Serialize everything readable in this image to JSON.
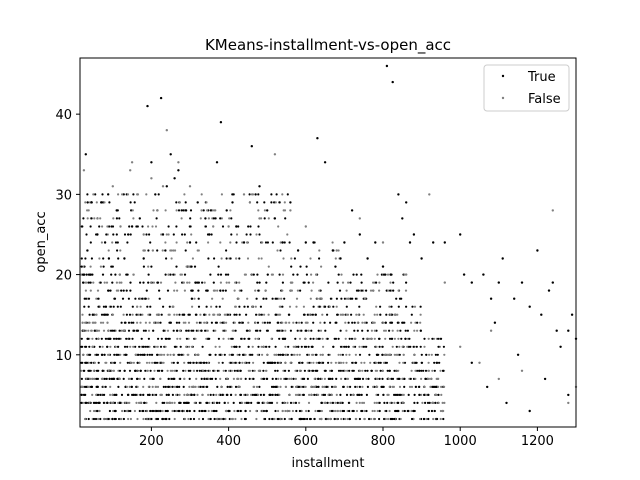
{
  "chart_data": {
    "type": "scatter",
    "title": "KMeans-installment-vs-open_acc",
    "xlabel": "installment",
    "ylabel": "open_acc",
    "xlim": [
      15,
      1300
    ],
    "ylim": [
      1,
      47
    ],
    "xticks": [
      200,
      400,
      600,
      800,
      1000,
      1200
    ],
    "yticks": [
      10,
      20,
      30,
      40
    ],
    "grid": false,
    "legend_position": "top-right",
    "series": [
      {
        "name": "True",
        "color": "#000000",
        "points": [
          [
            30,
            35
          ],
          [
            35,
            29
          ],
          [
            45,
            29
          ],
          [
            60,
            25
          ],
          [
            70,
            29
          ],
          [
            80,
            24
          ],
          [
            90,
            22
          ],
          [
            110,
            28
          ],
          [
            130,
            22
          ],
          [
            150,
            26
          ],
          [
            170,
            27
          ],
          [
            180,
            22
          ],
          [
            190,
            41
          ],
          [
            200,
            34
          ],
          [
            210,
            30
          ],
          [
            225,
            42
          ],
          [
            230,
            25
          ],
          [
            240,
            31
          ],
          [
            250,
            35
          ],
          [
            260,
            32
          ],
          [
            270,
            33
          ],
          [
            290,
            28
          ],
          [
            300,
            24
          ],
          [
            320,
            29
          ],
          [
            340,
            27
          ],
          [
            350,
            25
          ],
          [
            370,
            34
          ],
          [
            380,
            39
          ],
          [
            395,
            28
          ],
          [
            410,
            29
          ],
          [
            420,
            26
          ],
          [
            440,
            24
          ],
          [
            460,
            36
          ],
          [
            470,
            30
          ],
          [
            480,
            31
          ],
          [
            500,
            28
          ],
          [
            520,
            27
          ],
          [
            540,
            24
          ],
          [
            560,
            29
          ],
          [
            580,
            23
          ],
          [
            600,
            24
          ],
          [
            620,
            24
          ],
          [
            630,
            37
          ],
          [
            650,
            34
          ],
          [
            670,
            23
          ],
          [
            690,
            22
          ],
          [
            700,
            24
          ],
          [
            720,
            28
          ],
          [
            740,
            25
          ],
          [
            760,
            22
          ],
          [
            780,
            24
          ],
          [
            800,
            21
          ],
          [
            810,
            46
          ],
          [
            820,
            20
          ],
          [
            825,
            44
          ],
          [
            840,
            30
          ],
          [
            850,
            27
          ],
          [
            860,
            29
          ],
          [
            870,
            24
          ],
          [
            880,
            25
          ],
          [
            900,
            22
          ],
          [
            930,
            24
          ],
          [
            960,
            24
          ],
          [
            1000,
            25
          ],
          [
            1010,
            20
          ],
          [
            1030,
            19
          ],
          [
            1060,
            20
          ],
          [
            1080,
            17
          ],
          [
            1090,
            14
          ],
          [
            1100,
            19
          ],
          [
            1110,
            22
          ],
          [
            1140,
            17
          ],
          [
            1160,
            19
          ],
          [
            1180,
            16
          ],
          [
            1200,
            23
          ],
          [
            1210,
            15
          ],
          [
            1230,
            18
          ],
          [
            1240,
            19
          ],
          [
            1250,
            13
          ],
          [
            1260,
            11
          ],
          [
            1280,
            13
          ],
          [
            1290,
            15
          ],
          [
            1300,
            12
          ],
          [
            1070,
            6
          ],
          [
            1120,
            4
          ],
          [
            1180,
            3
          ],
          [
            1220,
            7
          ],
          [
            1280,
            5
          ],
          [
            1150,
            10
          ],
          [
            1030,
            9
          ]
        ]
      },
      {
        "name": "False",
        "color": "#808080",
        "points": [
          [
            25,
            33
          ],
          [
            60,
            27
          ],
          [
            100,
            31
          ],
          [
            120,
            26
          ],
          [
            145,
            33
          ],
          [
            150,
            34
          ],
          [
            165,
            30
          ],
          [
            180,
            25
          ],
          [
            200,
            32
          ],
          [
            215,
            28
          ],
          [
            230,
            31
          ],
          [
            240,
            38
          ],
          [
            270,
            34
          ],
          [
            300,
            31
          ],
          [
            330,
            28
          ],
          [
            360,
            26
          ],
          [
            400,
            26
          ],
          [
            440,
            30
          ],
          [
            480,
            27
          ],
          [
            520,
            35
          ],
          [
            560,
            28
          ],
          [
            600,
            26
          ],
          [
            680,
            23
          ],
          [
            740,
            27
          ],
          [
            800,
            24
          ],
          [
            860,
            20
          ],
          [
            920,
            30
          ],
          [
            960,
            19
          ],
          [
            1000,
            11
          ],
          [
            1050,
            9
          ],
          [
            1080,
            13
          ],
          [
            1100,
            7
          ],
          [
            1160,
            8
          ],
          [
            1240,
            28
          ],
          [
            1280,
            4
          ],
          [
            1300,
            6
          ]
        ]
      }
    ]
  }
}
